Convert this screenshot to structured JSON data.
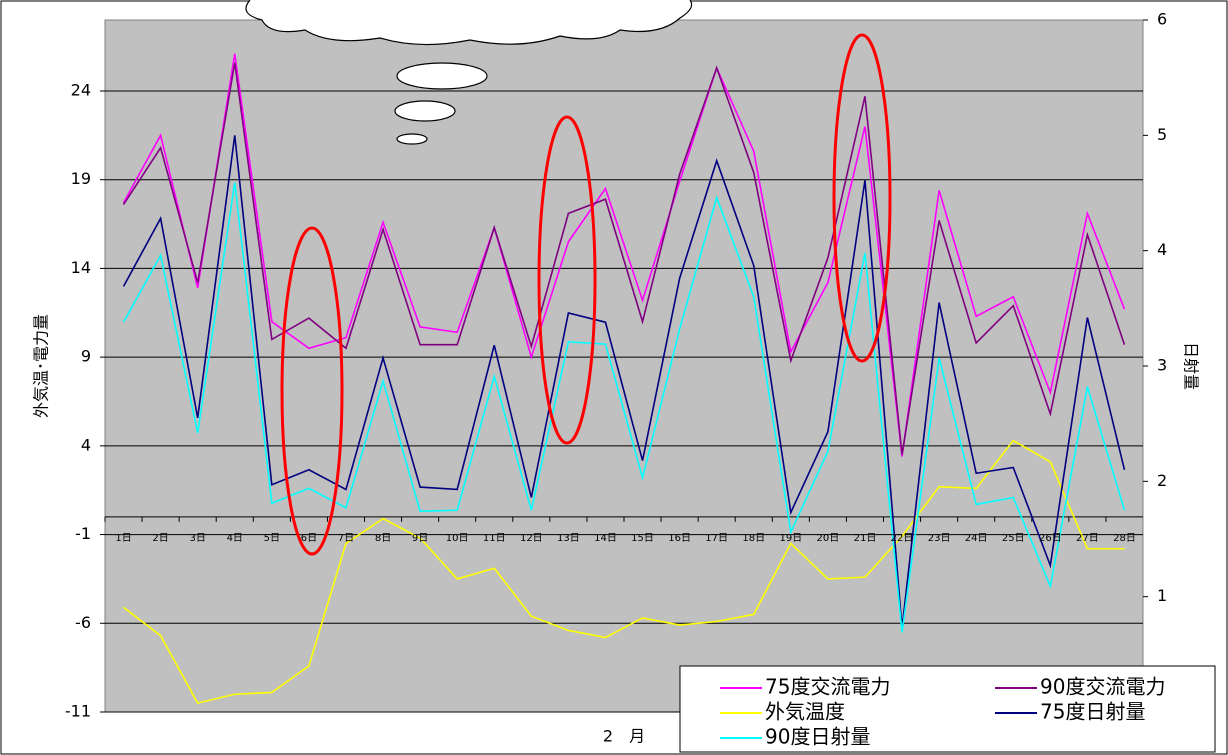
{
  "chart_data": {
    "type": "line",
    "y_label": "外気温･電力量",
    "y2_label": "日射量",
    "x_label": "2　月",
    "categories": [
      "1日",
      "2日",
      "3日",
      "4日",
      "5日",
      "6日",
      "7日",
      "8日",
      "9日",
      "10日",
      "11日",
      "12日",
      "13日",
      "14日",
      "15日",
      "16日",
      "17日",
      "18日",
      "19日",
      "20日",
      "21日",
      "22日",
      "23日",
      "24日",
      "25日",
      "26日",
      "27日",
      "28日"
    ],
    "ylim": [
      -11,
      28
    ],
    "yticks": [
      -11,
      -6,
      -1,
      4,
      9,
      14,
      19,
      24
    ],
    "y2lim": [
      0,
      6
    ],
    "y2ticks": [
      1,
      2,
      3,
      4,
      5,
      6
    ],
    "grid": true,
    "legend": "lower right",
    "series": [
      {
        "name": "75度交流電力",
        "color": "#ff00ff",
        "values": [
          17.7,
          21.5,
          12.9,
          26.1,
          11.0,
          9.5,
          10.1,
          16.6,
          10.7,
          10.4,
          16.3,
          9.0,
          15.5,
          18.5,
          12.2,
          18.9,
          25.3,
          20.6,
          9.3,
          13.2,
          22.0,
          3.4,
          18.4,
          11.3,
          12.4,
          7.0,
          17.1,
          11.7
        ]
      },
      {
        "name": "90度交流電力",
        "color": "#800080",
        "values": [
          17.6,
          20.8,
          13.2,
          25.6,
          10.0,
          11.2,
          9.5,
          16.2,
          9.7,
          9.7,
          16.3,
          9.6,
          17.1,
          17.9,
          11.0,
          19.3,
          25.3,
          19.4,
          8.8,
          14.6,
          23.7,
          3.5,
          16.7,
          9.8,
          11.9,
          5.8,
          15.9,
          9.7
        ]
      },
      {
        "name": "外気温度",
        "color": "#ffff00",
        "values": [
          -5.1,
          -6.7,
          -10.5,
          -10.0,
          -9.9,
          -8.4,
          -1.5,
          -0.1,
          -1.2,
          -3.5,
          -2.9,
          -5.6,
          -6.4,
          -6.8,
          -5.7,
          -6.1,
          -5.9,
          -5.5,
          -1.5,
          -3.5,
          -3.4,
          -1.1,
          1.7,
          1.6,
          4.3,
          3.1,
          -1.8,
          -1.8
        ]
      },
      {
        "name": "75度日射量",
        "color": "#000080",
        "axis": "y2",
        "values": [
          3.69,
          4.28,
          2.55,
          5.0,
          1.97,
          2.1,
          1.93,
          3.07,
          1.95,
          1.93,
          3.18,
          1.86,
          3.46,
          3.38,
          2.18,
          3.76,
          4.78,
          3.87,
          1.73,
          2.43,
          4.61,
          0.73,
          3.55,
          2.07,
          2.12,
          1.27,
          3.42,
          2.1
        ]
      },
      {
        "name": "90度日射量",
        "color": "#00ffff",
        "axis": "y2",
        "values": [
          3.38,
          3.96,
          2.42,
          4.59,
          1.81,
          1.94,
          1.77,
          2.87,
          1.74,
          1.75,
          2.91,
          1.75,
          3.21,
          3.19,
          2.03,
          3.32,
          4.46,
          3.6,
          1.56,
          2.26,
          3.98,
          0.69,
          3.07,
          1.8,
          1.86,
          1.09,
          2.82,
          1.75
        ]
      }
    ]
  }
}
